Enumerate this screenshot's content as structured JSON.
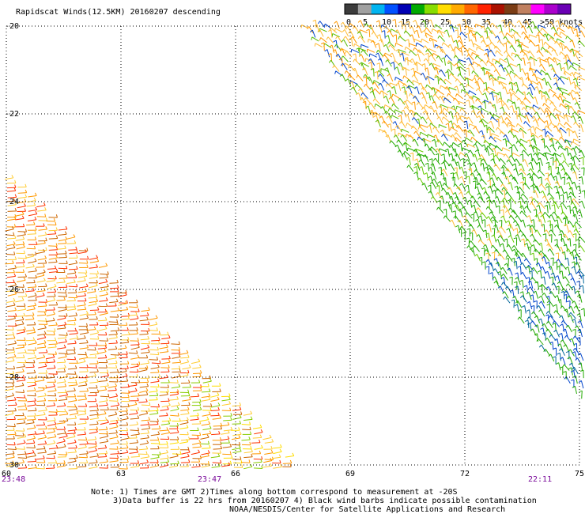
{
  "title": "Rapidscat Winds(12.5KM) 20160207 descending",
  "legend": {
    "colors": [
      "#3c3c3c",
      "#a0a0a0",
      "#00b4f0",
      "#0050ff",
      "#0000b4",
      "#00aa00",
      "#88dd00",
      "#ffdd00",
      "#ffaa00",
      "#ff6600",
      "#ff2200",
      "#aa1100",
      "#7a3c14",
      "#c08060",
      "#ff00ff",
      "#aa00cc",
      "#6a00b4"
    ],
    "labels": [
      "0",
      "5",
      "10",
      "15",
      "20",
      "25",
      "30",
      "35",
      "40",
      "45",
      ">50 knots"
    ]
  },
  "axes": {
    "lon_ticks": [
      "60",
      "63",
      "66",
      "69",
      "72",
      "75"
    ],
    "lat_ticks": [
      "-20",
      "-22",
      "-24",
      "-26",
      "-28",
      "-30"
    ],
    "times": [
      "23:48",
      "23:47",
      "22:11"
    ]
  },
  "swaths": [
    {
      "region": "lower-left",
      "dominant_colors": [
        "#ff9900",
        "#ffcc33",
        "#ff3300",
        "#cc6600"
      ],
      "speed_range_knots": [
        20,
        35
      ]
    },
    {
      "region": "upper-right",
      "dominant_colors": [
        "#22aa00",
        "#66cc00",
        "#ffbb33",
        "#0044cc",
        "#006699"
      ],
      "speed_range_knots": [
        10,
        35
      ]
    }
  ],
  "notes": {
    "line1": "Note: 1) Times are GMT 2)Times along bottom correspond to measurement at -20S",
    "line2": "3)Data buffer is 22 hrs from 20160207 4) Black wind barbs indicate possible contamination",
    "line3": "NOAA/NESDIS/Center for Satellite Applications and Research"
  }
}
